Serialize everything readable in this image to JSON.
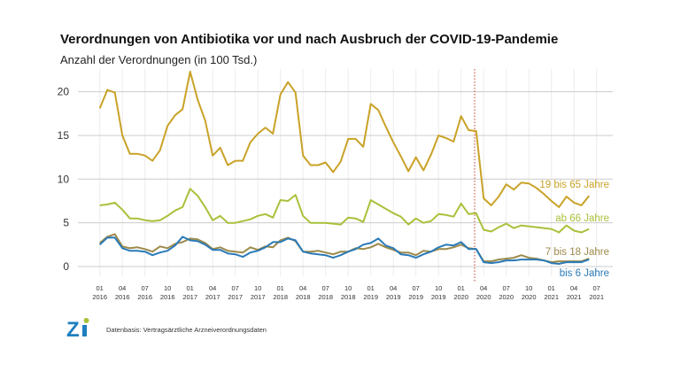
{
  "chart_data": {
    "type": "line",
    "title": "Verordnungen von Antibiotika vor und nach Ausbruch der COVID-19-Pandemie",
    "ylabel": "Anzahl der Verordnungen (in 100 Tsd.)",
    "xlabel": "",
    "ylim": [
      0,
      22.5
    ],
    "yticks": [
      0,
      5,
      10,
      15,
      20
    ],
    "grid": true,
    "x_start": "2016-01",
    "x_end": "2021-06",
    "xtick_labels": [
      [
        "01",
        "2016"
      ],
      [
        "04",
        "2016"
      ],
      [
        "07",
        "2016"
      ],
      [
        "10",
        "2016"
      ],
      [
        "01",
        "2017"
      ],
      [
        "04",
        "2017"
      ],
      [
        "07",
        "2017"
      ],
      [
        "10",
        "2017"
      ],
      [
        "01",
        "2018"
      ],
      [
        "04",
        "2018"
      ],
      [
        "07",
        "2018"
      ],
      [
        "10",
        "2018"
      ],
      [
        "01",
        "2019"
      ],
      [
        "04",
        "2019"
      ],
      [
        "07",
        "2019"
      ],
      [
        "10",
        "2019"
      ],
      [
        "01",
        "2020"
      ],
      [
        "04",
        "2020"
      ],
      [
        "07",
        "2020"
      ],
      [
        "10",
        "2020"
      ],
      [
        "01",
        "2021"
      ],
      [
        "04",
        "2021"
      ],
      [
        "07",
        "2021"
      ]
    ],
    "marker_line": {
      "date": "2020-03",
      "color": "#c0392b",
      "style": "dotted"
    },
    "series": [
      {
        "name": "19 bis 65 Jahre",
        "color": "#c9a227",
        "values": [
          18.1,
          20.2,
          19.9,
          15.0,
          12.9,
          12.9,
          12.7,
          12.1,
          13.3,
          16.1,
          17.3,
          18.0,
          22.3,
          19.1,
          16.7,
          12.7,
          13.6,
          11.6,
          12.1,
          12.1,
          14.2,
          15.2,
          15.9,
          15.2,
          19.7,
          21.1,
          19.9,
          12.7,
          11.6,
          11.6,
          11.9,
          10.8,
          12.0,
          14.6,
          14.6,
          13.7,
          18.6,
          17.9,
          16.0,
          14.2,
          12.6,
          10.9,
          12.5,
          11.0,
          12.8,
          15.0,
          14.7,
          14.3,
          17.2,
          15.6,
          15.5,
          7.8,
          7.0,
          8.0,
          9.4,
          8.8,
          9.6,
          9.5,
          9.0,
          8.3,
          7.5,
          6.8,
          8.0,
          7.3,
          7.0,
          8.1
        ]
      },
      {
        "name": "ab 66 Jahre",
        "color": "#a8c13a",
        "values": [
          7.0,
          7.1,
          7.3,
          6.5,
          5.5,
          5.5,
          5.3,
          5.2,
          5.3,
          5.8,
          6.4,
          6.8,
          8.9,
          8.1,
          6.8,
          5.3,
          5.8,
          5.0,
          5.0,
          5.2,
          5.4,
          5.8,
          6.0,
          5.6,
          7.6,
          7.5,
          8.2,
          5.8,
          5.0,
          5.0,
          5.0,
          4.9,
          4.8,
          5.6,
          5.5,
          5.1,
          7.6,
          7.1,
          6.6,
          6.1,
          5.7,
          4.8,
          5.5,
          5.0,
          5.2,
          6.0,
          5.9,
          5.7,
          7.2,
          6.0,
          6.1,
          4.2,
          4.0,
          4.5,
          4.9,
          4.4,
          4.7,
          4.6,
          4.5,
          4.4,
          4.3,
          3.9,
          4.7,
          4.1,
          3.9,
          4.3
        ]
      },
      {
        "name": "7 bis 18 Jahre",
        "color": "#9c8a4a",
        "values": [
          2.7,
          3.4,
          3.7,
          2.3,
          2.1,
          2.2,
          2.0,
          1.7,
          2.3,
          2.1,
          2.6,
          2.8,
          3.2,
          3.1,
          2.7,
          2.0,
          2.2,
          1.8,
          1.7,
          1.6,
          2.2,
          1.9,
          2.3,
          2.2,
          3.0,
          3.3,
          2.9,
          1.7,
          1.7,
          1.8,
          1.6,
          1.4,
          1.7,
          1.7,
          2.1,
          2.0,
          2.2,
          2.6,
          2.2,
          1.9,
          1.6,
          1.6,
          1.3,
          1.8,
          1.7,
          2.0,
          2.0,
          2.2,
          2.5,
          2.1,
          2.0,
          0.6,
          0.6,
          0.8,
          0.9,
          1.0,
          1.3,
          1.0,
          0.9,
          0.7,
          0.5,
          0.6,
          0.6,
          0.6,
          0.6,
          0.9
        ]
      },
      {
        "name": "bis 6 Jahre",
        "color": "#2a7ab8",
        "values": [
          2.5,
          3.3,
          3.3,
          2.1,
          1.8,
          1.8,
          1.7,
          1.3,
          1.6,
          1.8,
          2.4,
          3.4,
          3.0,
          2.9,
          2.5,
          1.9,
          1.9,
          1.5,
          1.4,
          1.1,
          1.6,
          1.8,
          2.2,
          2.8,
          2.8,
          3.2,
          3.0,
          1.7,
          1.5,
          1.4,
          1.3,
          1.0,
          1.3,
          1.7,
          2.0,
          2.5,
          2.7,
          3.2,
          2.4,
          2.1,
          1.4,
          1.3,
          1.0,
          1.4,
          1.7,
          2.2,
          2.5,
          2.4,
          2.8,
          2.0,
          2.0,
          0.5,
          0.4,
          0.5,
          0.7,
          0.7,
          0.8,
          0.8,
          0.8,
          0.7,
          0.4,
          0.3,
          0.5,
          0.5,
          0.5,
          0.8
        ]
      }
    ]
  },
  "footer": {
    "logo_text": "Zi",
    "source": "Datenbasis: Vertragsärztliche Arzneiverordnungsdaten"
  }
}
